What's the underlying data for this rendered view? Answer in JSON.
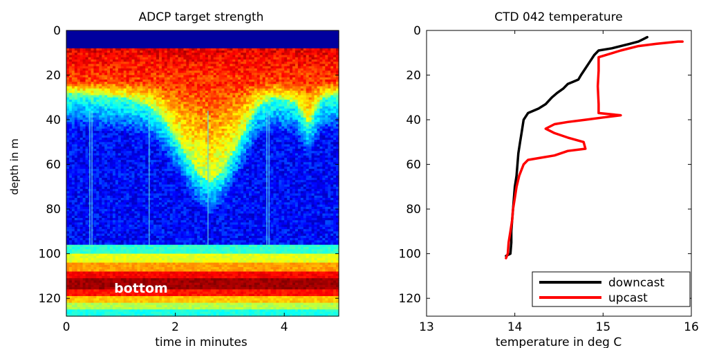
{
  "chart_data": [
    {
      "type": "heatmap",
      "title": "ADCP target strength",
      "xlabel": "time in minutes",
      "ylabel": "depth in m",
      "xlim": [
        0,
        5
      ],
      "ylim": [
        0,
        128
      ],
      "y_reversed": true,
      "x_ticks": [
        0,
        2,
        4
      ],
      "y_ticks": [
        0,
        20,
        40,
        60,
        80,
        100,
        120
      ],
      "colormap": "jet",
      "grid": false,
      "annotations": [
        {
          "text": "bottom",
          "x": 1.25,
          "y": 115,
          "color": "#ffffff"
        }
      ],
      "surface_band": {
        "depth_max": 8,
        "level": 0.03
      },
      "bottom_bands": [
        {
          "depth_min": 96,
          "depth_max": 100,
          "level": 0.42
        },
        {
          "depth_min": 100,
          "depth_max": 104,
          "level": 0.6
        },
        {
          "depth_min": 104,
          "depth_max": 108,
          "level": 0.72
        },
        {
          "depth_min": 108,
          "depth_max": 111,
          "level": 0.88
        },
        {
          "depth_min": 111,
          "depth_max": 116,
          "level": 0.97
        },
        {
          "depth_min": 116,
          "depth_max": 119,
          "level": 0.86
        },
        {
          "depth_min": 119,
          "depth_max": 122,
          "level": 0.68
        },
        {
          "depth_min": 122,
          "depth_max": 125,
          "level": 0.55
        },
        {
          "depth_min": 125,
          "depth_max": 128,
          "level": 0.4
        }
      ],
      "scattering_layer_base": [
        {
          "time": 0.0,
          "depth": 28
        },
        {
          "time": 0.5,
          "depth": 29
        },
        {
          "time": 1.0,
          "depth": 30
        },
        {
          "time": 1.5,
          "depth": 33
        },
        {
          "time": 1.8,
          "depth": 40
        },
        {
          "time": 2.1,
          "depth": 52
        },
        {
          "time": 2.4,
          "depth": 63
        },
        {
          "time": 2.65,
          "depth": 68
        },
        {
          "time": 2.9,
          "depth": 62
        },
        {
          "time": 3.2,
          "depth": 48
        },
        {
          "time": 3.5,
          "depth": 34
        },
        {
          "time": 3.8,
          "depth": 30
        },
        {
          "time": 4.2,
          "depth": 32
        },
        {
          "time": 4.45,
          "depth": 42
        },
        {
          "time": 4.7,
          "depth": 30
        },
        {
          "time": 5.0,
          "depth": 29
        }
      ],
      "vertical_streaks": [
        0.43,
        0.47,
        1.52,
        2.6,
        3.68,
        3.72
      ]
    },
    {
      "type": "line",
      "title": "CTD 042 temperature",
      "xlabel": "temperature in deg C",
      "ylabel": "",
      "xlim": [
        13,
        16
      ],
      "ylim": [
        0,
        128
      ],
      "y_reversed": true,
      "x_ticks": [
        13,
        14,
        15,
        16
      ],
      "y_ticks": [
        0,
        20,
        40,
        60,
        80,
        100,
        120
      ],
      "grid": false,
      "legend": "bottom-right",
      "series": [
        {
          "name": "downcast",
          "color": "#000000",
          "points": [
            [
              15.5,
              3
            ],
            [
              15.45,
              4
            ],
            [
              15.4,
              5
            ],
            [
              15.3,
              6
            ],
            [
              15.1,
              8
            ],
            [
              14.95,
              9
            ],
            [
              14.9,
              11
            ],
            [
              14.85,
              14
            ],
            [
              14.8,
              17
            ],
            [
              14.75,
              20
            ],
            [
              14.72,
              22
            ],
            [
              14.66,
              23
            ],
            [
              14.6,
              24
            ],
            [
              14.55,
              26
            ],
            [
              14.48,
              28
            ],
            [
              14.42,
              30
            ],
            [
              14.35,
              33
            ],
            [
              14.27,
              35
            ],
            [
              14.15,
              37
            ],
            [
              14.1,
              40
            ],
            [
              14.08,
              45
            ],
            [
              14.06,
              50
            ],
            [
              14.04,
              55
            ],
            [
              14.03,
              60
            ],
            [
              14.02,
              65
            ],
            [
              14.0,
              70
            ],
            [
              13.99,
              75
            ],
            [
              13.98,
              80
            ],
            [
              13.97,
              85
            ],
            [
              13.96,
              90
            ],
            [
              13.96,
              95
            ],
            [
              13.95,
              100
            ],
            [
              13.9,
              101
            ]
          ]
        },
        {
          "name": "upcast",
          "color": "#ff0000",
          "points": [
            [
              13.9,
              102
            ],
            [
              13.92,
              100
            ],
            [
              13.93,
              95
            ],
            [
              13.95,
              90
            ],
            [
              13.97,
              85
            ],
            [
              13.98,
              80
            ],
            [
              14.0,
              75
            ],
            [
              14.02,
              70
            ],
            [
              14.05,
              65
            ],
            [
              14.1,
              60
            ],
            [
              14.15,
              58
            ],
            [
              14.3,
              57
            ],
            [
              14.45,
              56
            ],
            [
              14.6,
              54
            ],
            [
              14.8,
              53
            ],
            [
              14.78,
              50
            ],
            [
              14.6,
              48
            ],
            [
              14.45,
              46
            ],
            [
              14.35,
              44
            ],
            [
              14.45,
              42
            ],
            [
              14.6,
              41
            ],
            [
              14.8,
              40
            ],
            [
              15.0,
              39
            ],
            [
              15.2,
              38
            ],
            [
              14.95,
              37
            ],
            [
              14.95,
              33
            ],
            [
              14.94,
              25
            ],
            [
              14.95,
              18
            ],
            [
              14.95,
              12
            ],
            [
              15.2,
              9
            ],
            [
              15.4,
              7
            ],
            [
              15.6,
              6
            ],
            [
              15.85,
              5
            ],
            [
              15.9,
              5
            ]
          ]
        }
      ]
    }
  ]
}
